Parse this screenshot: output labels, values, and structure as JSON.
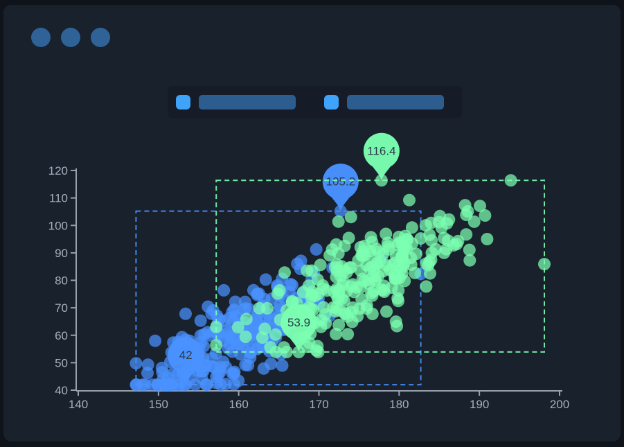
{
  "window": {
    "backdrop_color": "#0f141b",
    "panel_color": "#19212d",
    "titlebar": {
      "dot_count": 3,
      "dot_color": "#2f6398",
      "dot_positions_x": [
        40,
        83,
        126
      ]
    }
  },
  "legend": {
    "panel_color": "#151c27",
    "items": [
      {
        "id": "legend-item-blue",
        "swatch_color": "#3fa3fa",
        "bar_color": "#2d5d8e",
        "label_hidden": true
      },
      {
        "id": "legend-item-green",
        "swatch_color": "#3fa3fa",
        "bar_color": "#2d5d8e",
        "label_hidden": true
      }
    ]
  },
  "chart_data": {
    "type": "scatter",
    "title": "",
    "xlabel": "",
    "ylabel": "",
    "xlim": [
      140,
      200
    ],
    "ylim": [
      40,
      120
    ],
    "x_ticks": [
      140,
      150,
      160,
      170,
      180,
      190,
      200
    ],
    "y_ticks": [
      40,
      50,
      60,
      70,
      80,
      90,
      100,
      110,
      120
    ],
    "grid": false,
    "legend_position": "top-center",
    "axis_color": "#99a1ad",
    "tick_label_color": "#a9afbc",
    "tick_label_size": 17,
    "mark_label_color": "#2c3a4a",
    "mark_label_size": 17,
    "series": [
      {
        "id": "series-blue",
        "color": "#4992ff",
        "point_radius": 9,
        "point_opacity": 0.72,
        "point_count": 240,
        "seed": 101,
        "distribution": {
          "x_mean": 160,
          "x_std": 5.5,
          "x_range": [
            147.2,
            182.7
          ],
          "y_base": 55,
          "y_ref": 157,
          "y_slope": 1.6,
          "y_noise_std": 8.5,
          "y_range": [
            42,
            105.2
          ]
        },
        "anchor_points": [
          [
            147.2,
            49.8
          ],
          [
            153.4,
            42
          ],
          [
            172.7,
            105.2
          ],
          [
            182.7,
            82.3
          ]
        ],
        "mark_area": {
          "x": [
            147.2,
            182.7
          ],
          "y": [
            42,
            105.2
          ]
        },
        "mark_points": [
          {
            "type": "max",
            "coord": [
              172.7,
              105.2
            ],
            "label": "105.2"
          },
          {
            "type": "min",
            "coord": [
              153.4,
              42
            ],
            "label": "42"
          }
        ]
      },
      {
        "id": "series-green",
        "color": "#7cffb2",
        "point_radius": 9,
        "point_opacity": 0.72,
        "point_count": 240,
        "seed": 202,
        "distribution": {
          "x_mean": 175,
          "x_std": 7,
          "x_range": [
            157.2,
            198.1
          ],
          "y_base": 76,
          "y_ref": 172,
          "y_slope": 1.5,
          "y_noise_std": 8,
          "y_range": [
            53.9,
            116.4
          ]
        },
        "anchor_points": [
          [
            157.2,
            63
          ],
          [
            167.5,
            53.9
          ],
          [
            177.8,
            116.4
          ],
          [
            198.1,
            85.9
          ]
        ],
        "mark_area": {
          "x": [
            157.2,
            198.1
          ],
          "y": [
            53.9,
            116.4
          ]
        },
        "mark_points": [
          {
            "type": "max",
            "coord": [
              177.8,
              116.4
            ],
            "label": "116.4"
          },
          {
            "type": "min",
            "coord": [
              167.5,
              53.9
            ],
            "label": "53.9"
          }
        ]
      }
    ]
  }
}
